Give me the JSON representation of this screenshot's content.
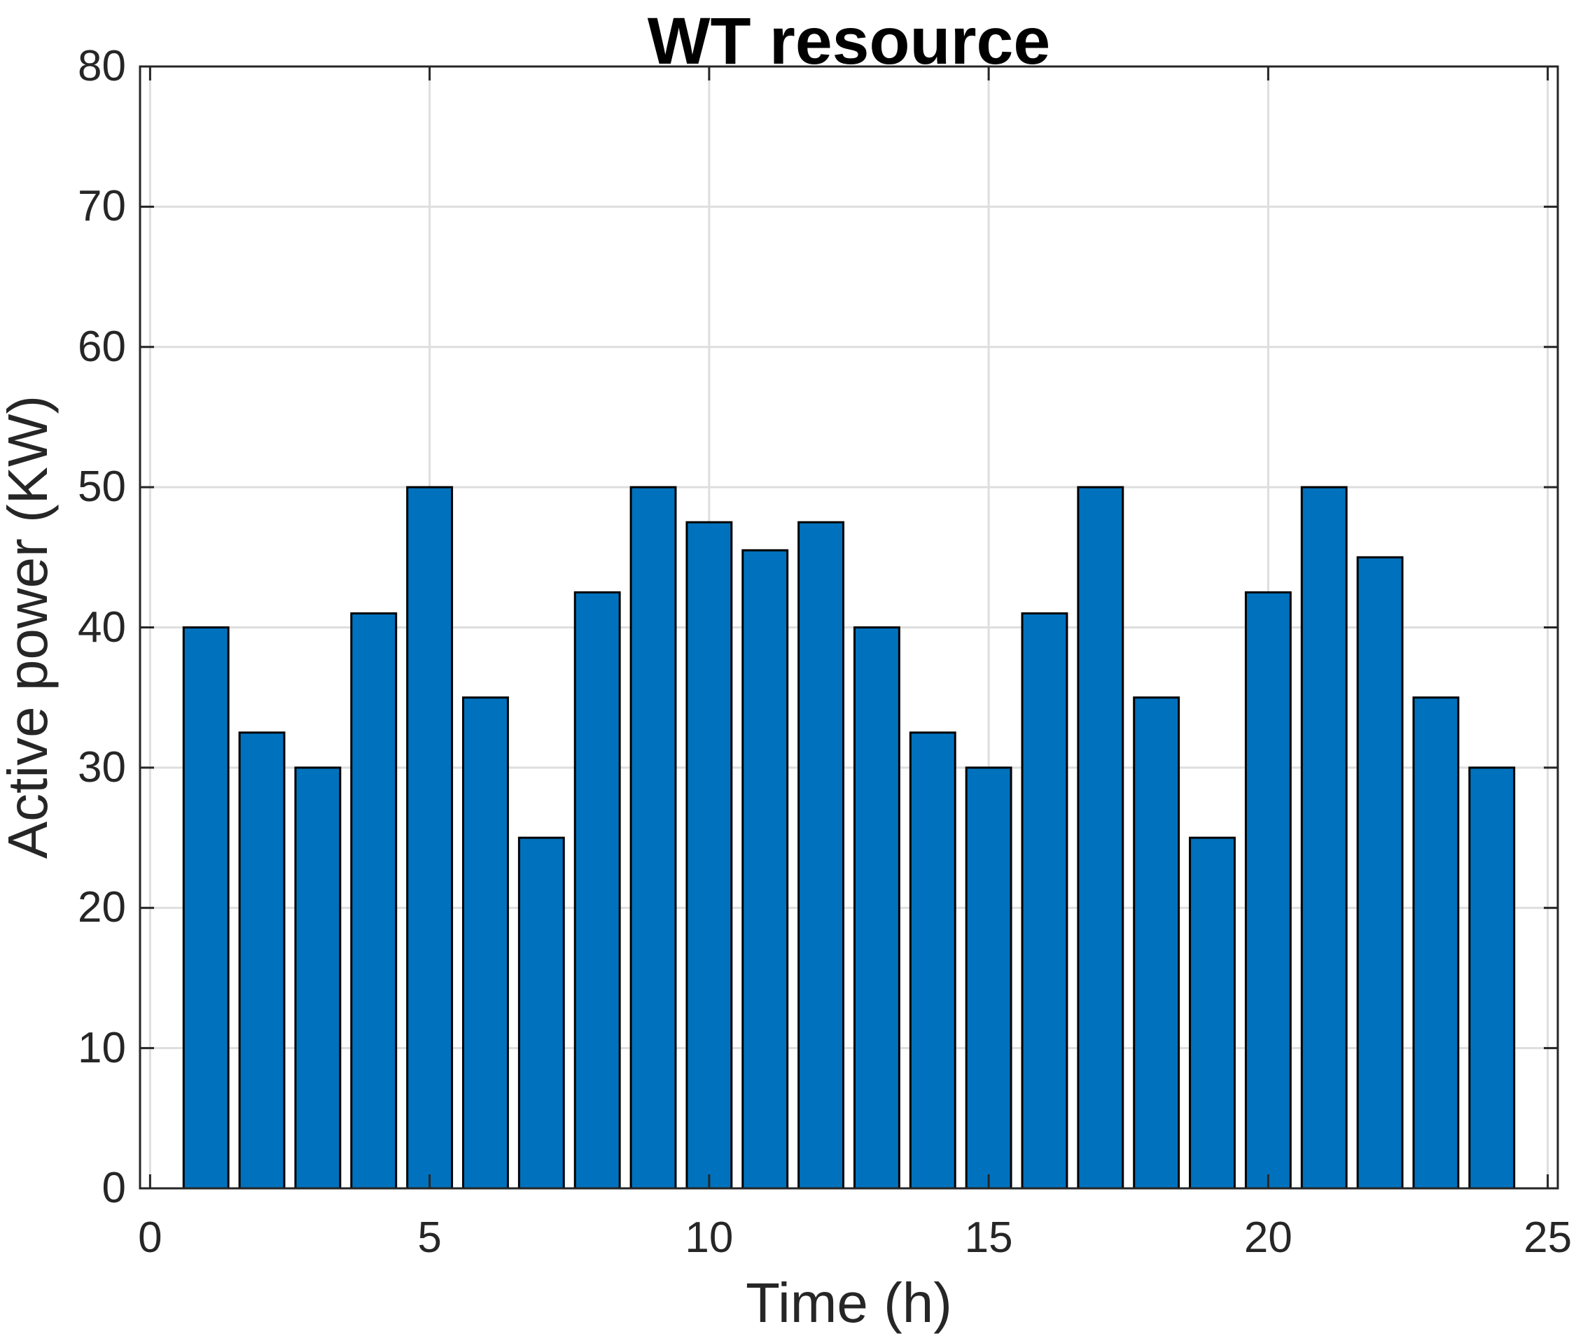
{
  "chart_data": {
    "type": "bar",
    "title": "WT resource",
    "xlabel": "Time (h)",
    "ylabel": "Active power (KW)",
    "x": [
      1,
      2,
      3,
      4,
      5,
      6,
      7,
      8,
      9,
      10,
      11,
      12,
      13,
      14,
      15,
      16,
      17,
      18,
      19,
      20,
      21,
      22,
      23,
      24
    ],
    "values": [
      40,
      32.5,
      30,
      41,
      50,
      35,
      25,
      42.5,
      50,
      47.5,
      45.5,
      47.5,
      40,
      32.5,
      30,
      41,
      50,
      35,
      25,
      42.5,
      50,
      45,
      35,
      30
    ],
    "xlim": [
      -0.18,
      25.18
    ],
    "ylim": [
      0,
      80
    ],
    "xticks": [
      0,
      5,
      10,
      15,
      20,
      25
    ],
    "yticks": [
      0,
      10,
      20,
      30,
      40,
      50,
      60,
      70,
      80
    ],
    "bar_width": 0.8,
    "grid": true,
    "legend": null,
    "bar_color": "#0072BD",
    "bar_edge_color": "#000000",
    "grid_color": "#DEDEDE",
    "axis_color": "#262626",
    "title_color": "#000000"
  }
}
